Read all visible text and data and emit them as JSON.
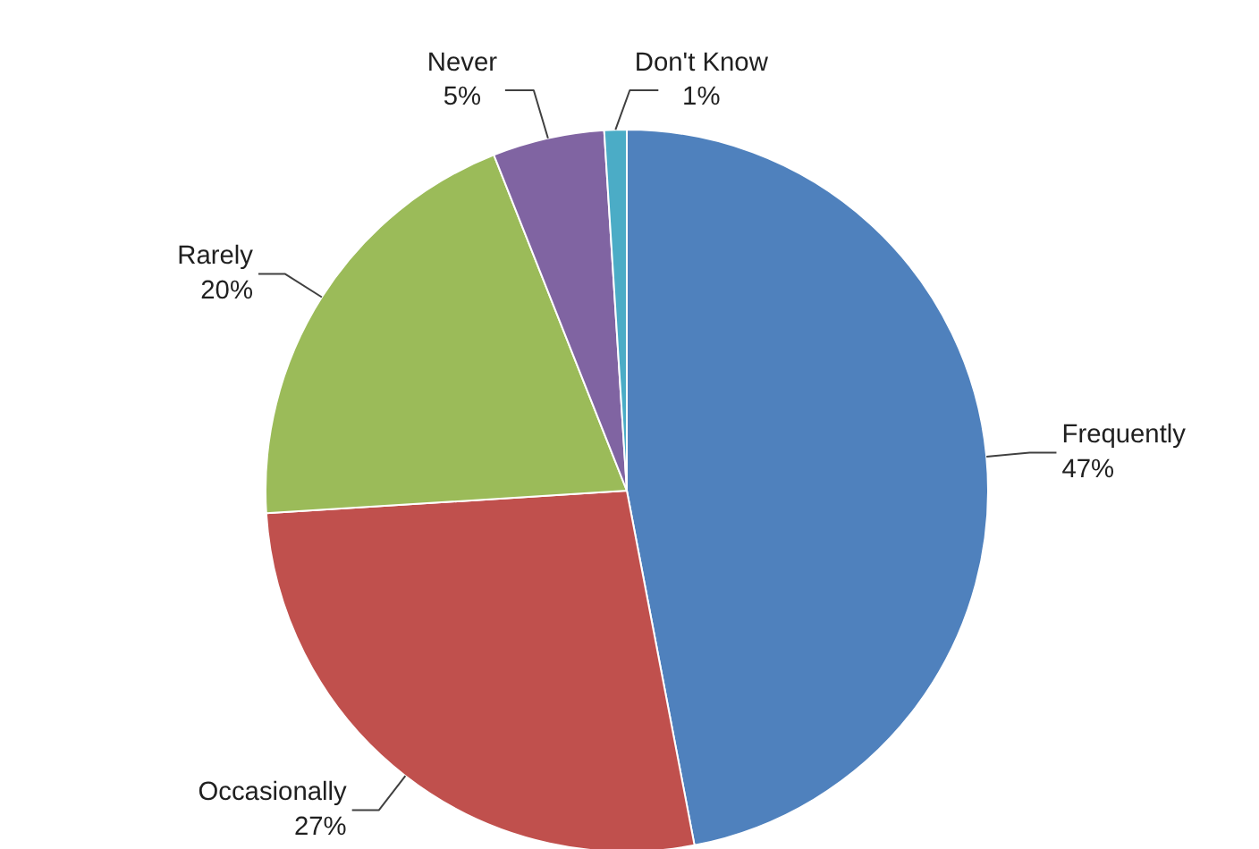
{
  "chart_data": {
    "type": "pie",
    "categories": [
      "Frequently",
      "Occasionally",
      "Rarely",
      "Never",
      "Don't Know"
    ],
    "values": [
      47,
      27,
      20,
      5,
      1
    ],
    "value_labels": [
      "47%",
      "27%",
      "20%",
      "5%",
      "1%"
    ],
    "colors": [
      "#4f81bd",
      "#c0504d",
      "#9bbb59",
      "#8064a2",
      "#4bacc6"
    ]
  }
}
